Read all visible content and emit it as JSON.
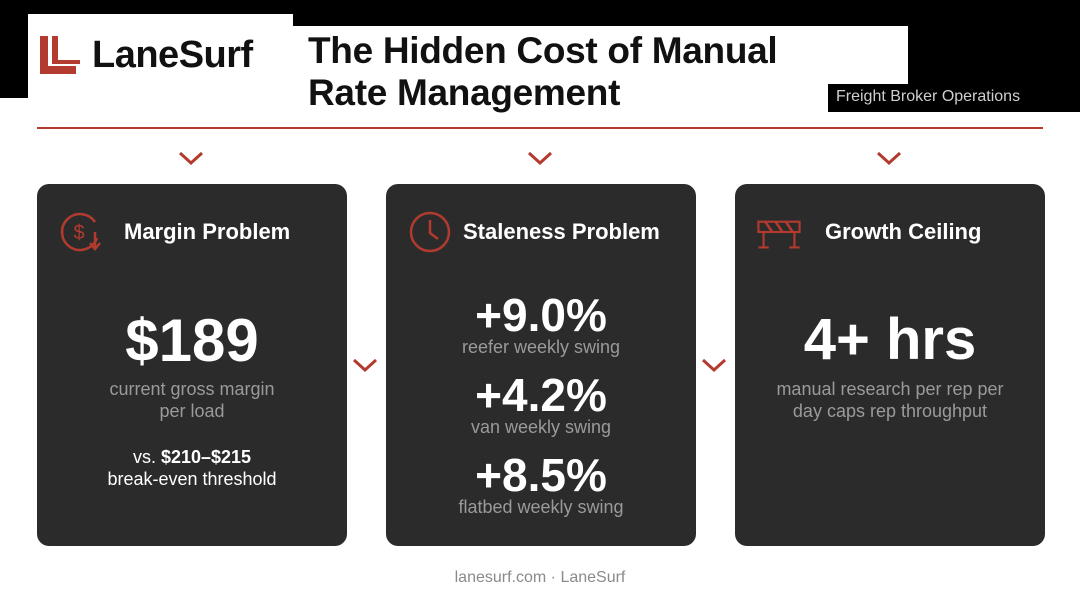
{
  "brand": {
    "name": "LaneSurf",
    "accent": "#b23a2e"
  },
  "header": {
    "title_line1": "The Hidden Cost of Manual",
    "title_line2": "Rate Management",
    "tag": "Freight Broker Operations"
  },
  "cards": [
    {
      "title": "Margin Problem",
      "icon": "dollar-down-icon",
      "big": "$189",
      "sub_line1": "current gross margin",
      "sub_line2": "per load",
      "note_prefix": "vs. ",
      "note_bold": "$210–$215",
      "note_line2": "break-even threshold"
    },
    {
      "title": "Staleness Problem",
      "icon": "clock-icon",
      "stats": [
        {
          "value": "+9.0%",
          "label": "reefer weekly swing"
        },
        {
          "value": "+4.2%",
          "label": "van weekly swing"
        },
        {
          "value": "+8.5%",
          "label": "flatbed weekly swing"
        }
      ]
    },
    {
      "title": "Growth Ceiling",
      "icon": "barrier-icon",
      "big": "4+ hrs",
      "sub_line1": "manual research per rep per",
      "sub_line2": "day caps rep throughput"
    }
  ],
  "footer": "lanesurf.com · LaneSurf"
}
